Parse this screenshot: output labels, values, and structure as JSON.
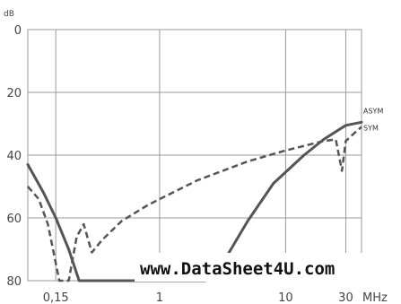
{
  "chart_data": {
    "type": "line",
    "ylabel": "dB",
    "xlabel": "MHz",
    "x_scale": "log",
    "y_inverted": true,
    "xlim": [
      0.09,
      40
    ],
    "ylim": [
      0,
      80
    ],
    "x_ticks": [
      {
        "value": 0.15,
        "label": "0,15"
      },
      {
        "value": 1,
        "label": "1"
      },
      {
        "value": 10,
        "label": "10"
      },
      {
        "value": 30,
        "label": "30"
      }
    ],
    "y_ticks": [
      {
        "value": 0,
        "label": "0"
      },
      {
        "value": 20,
        "label": "20"
      },
      {
        "value": 40,
        "label": "40"
      },
      {
        "value": 60,
        "label": "60"
      },
      {
        "value": 80,
        "label": "80"
      }
    ],
    "grid": true,
    "series": [
      {
        "name": "ASYM",
        "style": "solid",
        "color": "#555555",
        "points": [
          [
            0.09,
            43
          ],
          [
            0.12,
            52
          ],
          [
            0.15,
            60
          ],
          [
            0.19,
            70
          ],
          [
            0.23,
            80
          ],
          [
            0.5,
            80
          ],
          [
            0.8,
            80
          ],
          [
            1.6,
            80
          ],
          [
            2.3,
            80
          ],
          [
            3.0,
            76
          ],
          [
            5.0,
            61
          ],
          [
            8.0,
            49
          ],
          [
            14,
            40
          ],
          [
            20,
            35
          ],
          [
            30,
            30.5
          ],
          [
            40,
            29.5
          ]
        ]
      },
      {
        "name": "SYM",
        "style": "dashed",
        "color": "#555555",
        "points": [
          [
            0.09,
            50
          ],
          [
            0.11,
            54
          ],
          [
            0.13,
            62
          ],
          [
            0.16,
            80
          ],
          [
            0.19,
            80
          ],
          [
            0.22,
            66
          ],
          [
            0.25,
            62
          ],
          [
            0.29,
            71
          ],
          [
            0.35,
            67
          ],
          [
            0.5,
            61
          ],
          [
            0.8,
            56
          ],
          [
            1.0,
            54
          ],
          [
            2.0,
            48
          ],
          [
            5.0,
            42
          ],
          [
            10,
            38.5
          ],
          [
            20,
            35.5
          ],
          [
            25,
            35
          ],
          [
            28,
            45
          ],
          [
            30,
            35.5
          ],
          [
            35,
            33
          ],
          [
            40,
            31
          ]
        ]
      }
    ]
  },
  "watermark": "www.DataSheet4U.com"
}
